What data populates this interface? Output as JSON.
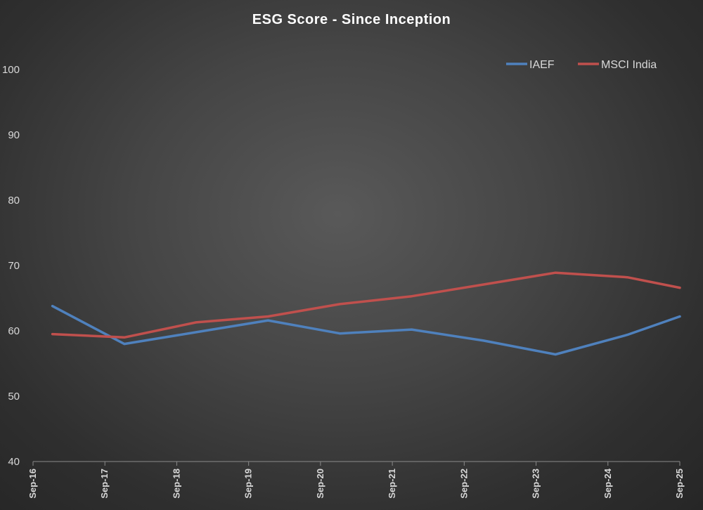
{
  "chart_data": {
    "type": "line",
    "title": "ESG Score - Since Inception",
    "xlabel": "",
    "ylabel": "",
    "ylim": [
      40,
      100
    ],
    "yticks": [
      40,
      50,
      60,
      70,
      80,
      90,
      100
    ],
    "categories": [
      "Sep-16",
      "Sep-17",
      "Sep-18",
      "Sep-19",
      "Sep-20",
      "Sep-21",
      "Sep-22",
      "Sep-23",
      "Sep-24",
      "Sep-25"
    ],
    "x_points": [
      "Dec-16",
      "Dec-17",
      "Dec-18",
      "Dec-19",
      "Dec-20",
      "Dec-21",
      "Dec-22",
      "Dec-23",
      "Dec-24",
      "Sep-25"
    ],
    "series": [
      {
        "name": "IAEF",
        "color": "#4f81bd",
        "values": [
          63.8,
          58.0,
          59.8,
          61.6,
          59.6,
          60.2,
          58.5,
          56.4,
          59.4,
          62.2
        ]
      },
      {
        "name": "MSCI India",
        "color": "#c0504d",
        "values": [
          59.5,
          59.0,
          61.3,
          62.2,
          64.1,
          65.3,
          67.1,
          68.9,
          68.2,
          66.6
        ]
      }
    ],
    "grid": false,
    "legend_position": "top-right"
  }
}
